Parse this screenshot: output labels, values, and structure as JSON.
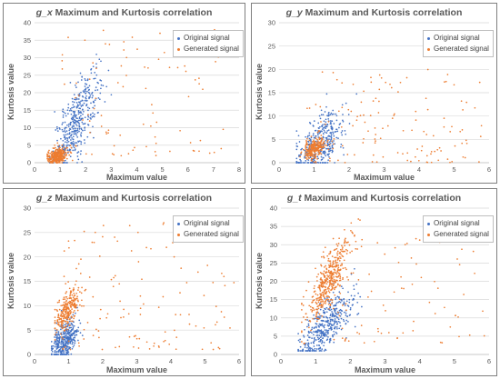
{
  "colors": {
    "original": "#4472c4",
    "generated": "#ed7d31",
    "grid": "#d9d9d9",
    "axis": "#bfbfbf"
  },
  "chart_data": [
    {
      "type": "scatter",
      "title_var": "g_x",
      "title_rest": " Maximum and Kurtosis correlation",
      "xlabel": "Maximum value",
      "ylabel": "Kurtosis value",
      "xlim": [
        0,
        8
      ],
      "ylim": [
        0,
        40
      ],
      "xticks": [
        0,
        1,
        2,
        3,
        4,
        5,
        6,
        7,
        8
      ],
      "yticks": [
        0,
        5,
        10,
        15,
        20,
        25,
        30,
        35,
        40
      ],
      "grid": "horizontal",
      "legend_position": "top-right",
      "series": [
        {
          "name": "Original signal",
          "color": "#4472c4",
          "cluster": {
            "cx": 1.65,
            "cy": 12,
            "sx": 0.45,
            "sy": 7,
            "n": 420,
            "corr": 0.75,
            "xmin": 0.6,
            "ymin": 0
          }
        },
        {
          "name": "Generated signal",
          "color": "#ed7d31",
          "cluster": {
            "cx": 0.9,
            "cy": 2,
            "sx": 0.2,
            "sy": 1.2,
            "n": 320,
            "corr": 0.3,
            "xmin": 0.5,
            "ymin": 0
          },
          "spread": {
            "x": [
              1.0,
              7.5
            ],
            "y": [
              2,
              38
            ],
            "n": 90
          }
        }
      ]
    },
    {
      "type": "scatter",
      "title_var": "g_y",
      "title_rest": " Maximum and Kurtosis correlation",
      "xlabel": "Maximum value",
      "ylabel": "Kurtosis value",
      "xlim": [
        0,
        6
      ],
      "ylim": [
        0,
        30
      ],
      "xticks": [
        0,
        1,
        2,
        3,
        4,
        5,
        6
      ],
      "yticks": [
        0,
        5,
        10,
        15,
        20,
        25,
        30
      ],
      "grid": "horizontal",
      "legend_position": "top-right",
      "series": [
        {
          "name": "Original signal",
          "color": "#4472c4",
          "cluster": {
            "cx": 1.15,
            "cy": 4,
            "sx": 0.35,
            "sy": 3.5,
            "n": 380,
            "corr": 0.55,
            "xmin": 0.5,
            "ymin": 0
          }
        },
        {
          "name": "Generated signal",
          "color": "#ed7d31",
          "cluster": {
            "cx": 1.0,
            "cy": 3,
            "sx": 0.15,
            "sy": 1.0,
            "n": 240,
            "corr": 0.4,
            "xmin": 0.6,
            "ymin": 0
          },
          "spread": {
            "x": [
              0.8,
              5.8
            ],
            "y": [
              0,
              20
            ],
            "n": 150
          }
        }
      ]
    },
    {
      "type": "scatter",
      "title_var": "g_z",
      "title_rest": " Maximum and Kurtosis correlation",
      "xlabel": "Maximum value",
      "ylabel": "Kurtosis value",
      "xlim": [
        0,
        6
      ],
      "ylim": [
        0,
        30
      ],
      "xticks": [
        0,
        1,
        2,
        3,
        4,
        5,
        6
      ],
      "yticks": [
        0,
        5,
        10,
        15,
        20,
        25,
        30
      ],
      "grid": "horizontal",
      "legend_position": "top-right",
      "series": [
        {
          "name": "Original signal",
          "color": "#4472c4",
          "cluster": {
            "cx": 0.9,
            "cy": 3,
            "sx": 0.2,
            "sy": 2.2,
            "n": 380,
            "corr": 0.5,
            "xmin": 0.5,
            "ymin": 0
          }
        },
        {
          "name": "Generated signal",
          "color": "#ed7d31",
          "cluster": {
            "cx": 0.95,
            "cy": 9,
            "sx": 0.18,
            "sy": 2.2,
            "n": 260,
            "corr": 0.6,
            "xmin": 0.6,
            "ymin": 3
          },
          "spread": {
            "x": [
              0.8,
              5.9
            ],
            "y": [
              1,
              27
            ],
            "n": 130
          }
        }
      ]
    },
    {
      "type": "scatter",
      "title_var": "g_t",
      "title_rest": " Maximum and Kurtosis correlation",
      "xlabel": "Maximum value",
      "ylabel": "Kurtosis value",
      "xlim": [
        0,
        6
      ],
      "ylim": [
        0,
        40
      ],
      "xticks": [
        0,
        1,
        2,
        3,
        4,
        5,
        6
      ],
      "yticks": [
        0,
        5,
        10,
        15,
        20,
        25,
        30,
        35,
        40
      ],
      "grid": "horizontal",
      "legend_position": "top-right",
      "series": [
        {
          "name": "Original signal",
          "color": "#4472c4",
          "cluster": {
            "cx": 1.3,
            "cy": 8,
            "sx": 0.4,
            "sy": 5,
            "n": 420,
            "corr": 0.7,
            "xmin": 0.5,
            "ymin": 1
          }
        },
        {
          "name": "Generated signal",
          "color": "#ed7d31",
          "cluster": {
            "cx": 1.35,
            "cy": 20,
            "sx": 0.35,
            "sy": 6,
            "n": 420,
            "corr": 0.8,
            "xmin": 0.6,
            "ymin": 3
          },
          "spread": {
            "x": [
              1.5,
              5.9
            ],
            "y": [
              3,
              33
            ],
            "n": 80
          }
        }
      ]
    }
  ]
}
